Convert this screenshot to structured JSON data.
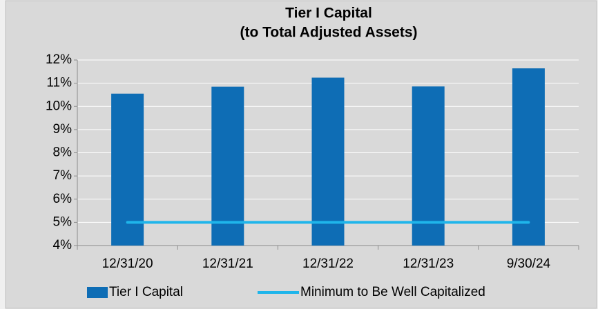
{
  "chart_data": {
    "type": "bar",
    "title": "Tier I Capital",
    "subtitle": "(to Total Adjusted Assets)",
    "categories": [
      "12/31/20",
      "12/31/21",
      "12/31/22",
      "12/31/23",
      "9/30/24"
    ],
    "series": [
      {
        "name": "Tier I Capital",
        "type": "bar",
        "color": "#0e6db5",
        "values": [
          10.55,
          10.85,
          11.24,
          10.86,
          11.64
        ]
      },
      {
        "name": "Minimum to Be Well Capitalized",
        "type": "line",
        "color": "#1fb5ea",
        "values": [
          5,
          5,
          5,
          5,
          5
        ]
      }
    ],
    "ylim": [
      4,
      12
    ],
    "yticks": [
      {
        "value": 4,
        "label": "4%"
      },
      {
        "value": 5,
        "label": "5%"
      },
      {
        "value": 6,
        "label": "6%"
      },
      {
        "value": 7,
        "label": "7%"
      },
      {
        "value": 8,
        "label": "8%"
      },
      {
        "value": 9,
        "label": "9%"
      },
      {
        "value": 10,
        "label": "10%"
      },
      {
        "value": 11,
        "label": "11%"
      },
      {
        "value": 12,
        "label": "12%"
      }
    ],
    "grid": true,
    "legend": "bottom"
  }
}
